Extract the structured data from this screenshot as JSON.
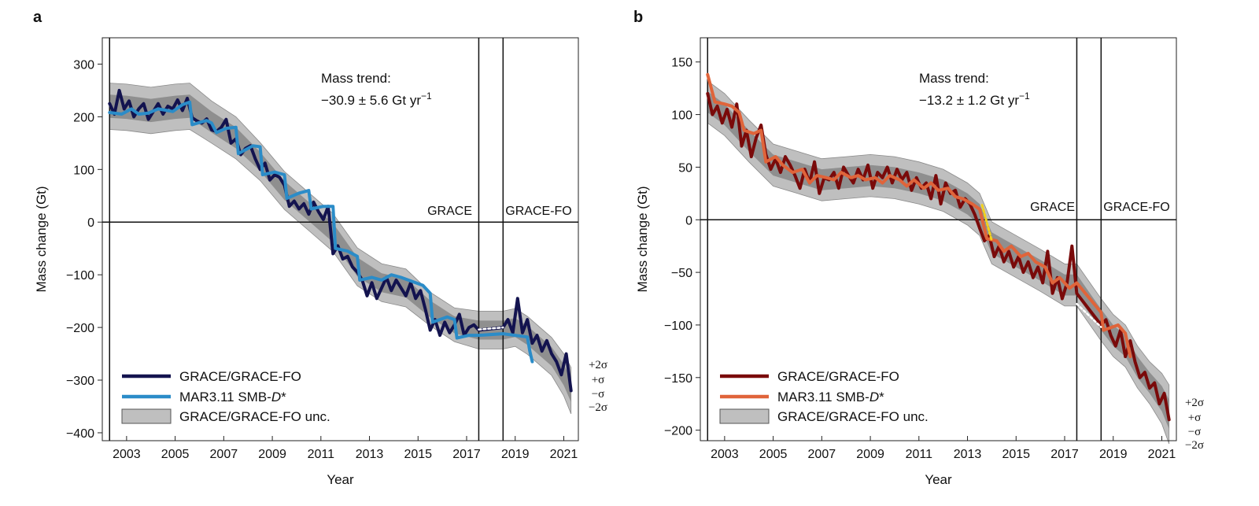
{
  "figure": {
    "sigma_labels": [
      "+2σ",
      "+σ",
      "−σ",
      "−2σ"
    ]
  },
  "chart_data": [
    {
      "type": "line",
      "panel_letter": "a",
      "xlabel": "Year",
      "ylabel": "Mass change (Gt)",
      "xlim": [
        2002.0,
        2021.6
      ],
      "ylim": [
        -415,
        350
      ],
      "xticks": [
        2003,
        2005,
        2007,
        2009,
        2011,
        2013,
        2015,
        2017,
        2019,
        2021
      ],
      "yticks": [
        300,
        200,
        100,
        0,
        -100,
        -200,
        -300,
        -400
      ],
      "ytick_labels": [
        "300",
        "200",
        "100",
        "0",
        "−100",
        "−200",
        "−300",
        "−400"
      ],
      "trend_line1": "Mass trend:",
      "trend_line2": "−30.9 ± 5.6 Gt yr",
      "trend_exp": "−1",
      "gap_start": 2017.5,
      "gap_end": 2018.5,
      "grace_label": "GRACE",
      "gracefo_label": "GRACE-FO",
      "colors": {
        "grace": "#13134f",
        "mar": "#2b8cc8",
        "band_outer": "#bfbfbf",
        "band_inner": "#8f8f8f",
        "bridge": "#ffffff"
      },
      "legend": [
        "GRACE/GRACE-FO",
        "MAR3.11 SMB-",
        "D",
        "*",
        "GRACE/GRACE-FO unc."
      ],
      "series": [
        {
          "name": "GRACE/GRACE-FO",
          "x": [
            2002.3,
            2002.5,
            2002.7,
            2002.9,
            2003.1,
            2003.3,
            2003.5,
            2003.7,
            2003.9,
            2004.1,
            2004.3,
            2004.5,
            2004.7,
            2004.9,
            2005.1,
            2005.3,
            2005.5,
            2005.7,
            2005.9,
            2006.1,
            2006.3,
            2006.5,
            2006.7,
            2006.9,
            2007.1,
            2007.3,
            2007.5,
            2007.7,
            2007.9,
            2008.1,
            2008.3,
            2008.5,
            2008.7,
            2008.9,
            2009.1,
            2009.3,
            2009.5,
            2009.7,
            2009.9,
            2010.1,
            2010.3,
            2010.5,
            2010.7,
            2010.9,
            2011.1,
            2011.3,
            2011.5,
            2011.7,
            2011.9,
            2012.1,
            2012.3,
            2012.5,
            2012.7,
            2012.9,
            2013.1,
            2013.3,
            2013.5,
            2013.7,
            2013.9,
            2014.1,
            2014.3,
            2014.5,
            2014.7,
            2014.9,
            2015.1,
            2015.3,
            2015.5,
            2015.7,
            2015.9,
            2016.1,
            2016.3,
            2016.5,
            2016.7,
            2016.9,
            2017.1,
            2017.3,
            2017.5,
            2018.5,
            2018.7,
            2018.9,
            2019.1,
            2019.3,
            2019.5,
            2019.7,
            2019.9,
            2020.1,
            2020.3,
            2020.5,
            2020.7,
            2020.9,
            2021.1,
            2021.3
          ],
          "values": [
            225,
            205,
            250,
            215,
            230,
            200,
            215,
            225,
            195,
            210,
            225,
            205,
            220,
            215,
            232,
            212,
            235,
            198,
            192,
            188,
            196,
            175,
            172,
            180,
            195,
            150,
            158,
            128,
            140,
            145,
            120,
            100,
            112,
            80,
            90,
            85,
            70,
            30,
            40,
            25,
            35,
            15,
            38,
            20,
            5,
            30,
            -60,
            -45,
            -70,
            -65,
            -85,
            -95,
            -110,
            -140,
            -115,
            -145,
            -125,
            -105,
            -130,
            -110,
            -125,
            -140,
            -115,
            -145,
            -130,
            -165,
            -205,
            -185,
            -215,
            -190,
            -210,
            -195,
            -175,
            -215,
            -200,
            -195,
            -205,
            -200,
            -185,
            -210,
            -145,
            -210,
            -185,
            -230,
            -215,
            -245,
            -225,
            -250,
            -265,
            -290,
            -250,
            -320
          ]
        },
        {
          "name": "MAR3.11 SMB-D*",
          "x": [
            2002.3,
            2002.8,
            2003.2,
            2003.5,
            2003.9,
            2004.3,
            2004.9,
            2005.3,
            2005.6,
            2005.7,
            2006.3,
            2006.5,
            2006.7,
            2007.1,
            2007.5,
            2007.6,
            2008.2,
            2008.5,
            2008.6,
            2009.1,
            2009.5,
            2009.6,
            2010.1,
            2010.5,
            2010.6,
            2011.1,
            2011.5,
            2011.6,
            2012.1,
            2012.5,
            2012.6,
            2013.1,
            2013.5,
            2013.9,
            2014.3,
            2014.9,
            2015.2,
            2015.5,
            2015.6,
            2016.2,
            2016.5,
            2016.6,
            2017.1,
            2017.5,
            2018.5,
            2019.5,
            2019.6,
            2019.7
          ],
          "values": [
            208,
            205,
            215,
            205,
            207,
            215,
            210,
            223,
            228,
            185,
            193,
            188,
            170,
            178,
            180,
            130,
            145,
            143,
            90,
            95,
            90,
            45,
            55,
            60,
            25,
            30,
            30,
            -50,
            -55,
            -65,
            -110,
            -105,
            -110,
            -100,
            -105,
            -115,
            -120,
            -135,
            -190,
            -180,
            -185,
            -220,
            -215,
            -215,
            -212,
            -218,
            -245,
            -265
          ]
        }
      ],
      "band": {
        "x": [
          2002.3,
          2003.0,
          2004.0,
          2005.0,
          2005.6,
          2006.5,
          2007.5,
          2008.5,
          2009.5,
          2010.5,
          2011.5,
          2012.5,
          2013.5,
          2014.5,
          2015.5,
          2016.5,
          2017.5,
          2018.5,
          2019.0,
          2019.5,
          2020.0,
          2020.5,
          2021.0,
          2021.3
        ],
        "center": [
          220,
          218,
          212,
          218,
          220,
          190,
          160,
          115,
          60,
          20,
          -20,
          -85,
          -115,
          -125,
          -165,
          -195,
          -205,
          -205,
          -200,
          -215,
          -235,
          -255,
          -290,
          -320
        ],
        "sigma": [
          22,
          22,
          22,
          22,
          22,
          20,
          20,
          18,
          18,
          18,
          18,
          18,
          18,
          18,
          16,
          16,
          18,
          18,
          18,
          18,
          18,
          18,
          20,
          22
        ]
      },
      "bridge": {
        "x": [
          2017.5,
          2018.5
        ],
        "values": [
          -204,
          -200
        ]
      }
    },
    {
      "type": "line",
      "panel_letter": "b",
      "xlabel": "Year",
      "ylabel": "Mass change (Gt)",
      "xlim": [
        2002.0,
        2021.6
      ],
      "ylim": [
        -210,
        173
      ],
      "xticks": [
        2003,
        2005,
        2007,
        2009,
        2011,
        2013,
        2015,
        2017,
        2019,
        2021
      ],
      "yticks": [
        150,
        100,
        50,
        0,
        -50,
        -100,
        -150,
        -200
      ],
      "ytick_labels": [
        "150",
        "100",
        "50",
        "0",
        "−50",
        "−100",
        "−150",
        "−200"
      ],
      "trend_line1": "Mass trend:",
      "trend_line2": "−13.2 ± 1.2 Gt yr",
      "trend_exp": "−1",
      "gap_start": 2017.5,
      "gap_end": 2018.5,
      "grace_label": "GRACE",
      "gracefo_label": "GRACE-FO",
      "colors": {
        "grace": "#7a0a0a",
        "mar": "#e0643a",
        "band_outer": "#bfbfbf",
        "band_inner": "#8f8f8f",
        "bridge": "#ffffff",
        "gap": "#f2d21b"
      },
      "legend": [
        "GRACE/GRACE-FO",
        "MAR3.11 SMB-",
        "D",
        "*",
        "GRACE/GRACE-FO unc."
      ],
      "series": [
        {
          "name": "GRACE/GRACE-FO",
          "x": [
            2002.3,
            2002.5,
            2002.7,
            2002.9,
            2003.1,
            2003.3,
            2003.5,
            2003.7,
            2003.9,
            2004.1,
            2004.3,
            2004.5,
            2004.7,
            2004.9,
            2005.1,
            2005.3,
            2005.5,
            2005.7,
            2005.9,
            2006.1,
            2006.3,
            2006.5,
            2006.7,
            2006.9,
            2007.1,
            2007.3,
            2007.5,
            2007.7,
            2007.9,
            2008.1,
            2008.3,
            2008.5,
            2008.7,
            2008.9,
            2009.1,
            2009.3,
            2009.5,
            2009.7,
            2009.9,
            2010.1,
            2010.3,
            2010.5,
            2010.7,
            2010.9,
            2011.1,
            2011.3,
            2011.5,
            2011.7,
            2011.9,
            2012.1,
            2012.3,
            2012.5,
            2012.7,
            2012.9,
            2013.1,
            2013.3,
            2013.5,
            2013.7,
            2013.9,
            2014.1,
            2014.3,
            2014.5,
            2014.7,
            2014.9,
            2015.1,
            2015.3,
            2015.5,
            2015.7,
            2015.9,
            2016.1,
            2016.3,
            2016.5,
            2016.7,
            2016.9,
            2017.1,
            2017.3,
            2017.5,
            2018.5,
            2018.7,
            2018.9,
            2019.1,
            2019.3,
            2019.5,
            2019.7,
            2019.9,
            2020.1,
            2020.3,
            2020.5,
            2020.7,
            2020.9,
            2021.1,
            2021.3
          ],
          "values": [
            120,
            100,
            108,
            92,
            105,
            88,
            110,
            70,
            85,
            60,
            78,
            90,
            62,
            48,
            58,
            45,
            60,
            52,
            42,
            30,
            48,
            35,
            55,
            25,
            40,
            38,
            45,
            30,
            50,
            42,
            35,
            48,
            38,
            52,
            30,
            45,
            40,
            50,
            35,
            48,
            38,
            45,
            28,
            40,
            30,
            35,
            20,
            42,
            15,
            35,
            25,
            28,
            12,
            20,
            15,
            5,
            -8,
            -20,
            -15,
            -35,
            -25,
            -40,
            -30,
            -45,
            -35,
            -50,
            -40,
            -55,
            -45,
            -60,
            -30,
            -70,
            -55,
            -75,
            -60,
            -25,
            -70,
            -100,
            -95,
            -110,
            -120,
            -105,
            -130,
            -115,
            -135,
            -150,
            -145,
            -160,
            -155,
            -175,
            -165,
            -190
          ]
        },
        {
          "name": "MAR3.11 SMB-D*",
          "x": [
            2002.3,
            2002.6,
            2003.0,
            2003.3,
            2003.6,
            2003.8,
            2004.2,
            2004.5,
            2004.7,
            2005.1,
            2005.4,
            2005.8,
            2006.2,
            2006.5,
            2006.8,
            2007.2,
            2007.5,
            2007.8,
            2008.2,
            2008.5,
            2008.8,
            2009.2,
            2009.5,
            2009.8,
            2010.2,
            2010.5,
            2010.8,
            2011.2,
            2011.5,
            2011.8,
            2012.2,
            2012.5,
            2012.8,
            2013.2,
            2013.5,
            2013.8,
            2014.2,
            2014.5,
            2014.8,
            2015.2,
            2015.5,
            2015.8,
            2016.2,
            2016.5,
            2016.8,
            2017.2,
            2017.5,
            2018.5,
            2018.6,
            2019.2,
            2019.5,
            2019.7
          ],
          "values": [
            138,
            112,
            110,
            108,
            102,
            85,
            82,
            85,
            55,
            60,
            52,
            45,
            48,
            35,
            42,
            40,
            38,
            45,
            40,
            42,
            38,
            40,
            35,
            42,
            38,
            32,
            38,
            30,
            35,
            28,
            30,
            22,
            20,
            15,
            10,
            -18,
            -20,
            -30,
            -25,
            -35,
            -32,
            -40,
            -45,
            -60,
            -55,
            -65,
            -60,
            -88,
            -105,
            -100,
            -108,
            -130
          ]
        }
      ],
      "band": {
        "x": [
          2002.3,
          2003.0,
          2004.0,
          2005.0,
          2006.0,
          2007.0,
          2008.0,
          2009.0,
          2010.0,
          2011.0,
          2012.0,
          2013.0,
          2013.5,
          2014.0,
          2015.0,
          2016.0,
          2017.0,
          2017.5,
          2018.5,
          2019.0,
          2019.5,
          2020.0,
          2020.5,
          2021.0,
          2021.3
        ],
        "center": [
          112,
          100,
          75,
          52,
          45,
          38,
          40,
          42,
          40,
          35,
          28,
          15,
          5,
          -22,
          -35,
          -48,
          -62,
          -62,
          -95,
          -110,
          -120,
          -140,
          -155,
          -170,
          -185
        ],
        "sigma": [
          10,
          10,
          10,
          10,
          10,
          10,
          10,
          10,
          10,
          10,
          10,
          10,
          10,
          10,
          10,
          10,
          10,
          10,
          10,
          10,
          10,
          10,
          10,
          12,
          14
        ]
      },
      "bridge": {
        "x": [
          2017.5,
          2018.5
        ],
        "values": [
          -80,
          -102
        ]
      },
      "gap_bridge": {
        "x": [
          2013.6,
          2014.0
        ],
        "values": [
          14,
          -20
        ]
      }
    }
  ]
}
